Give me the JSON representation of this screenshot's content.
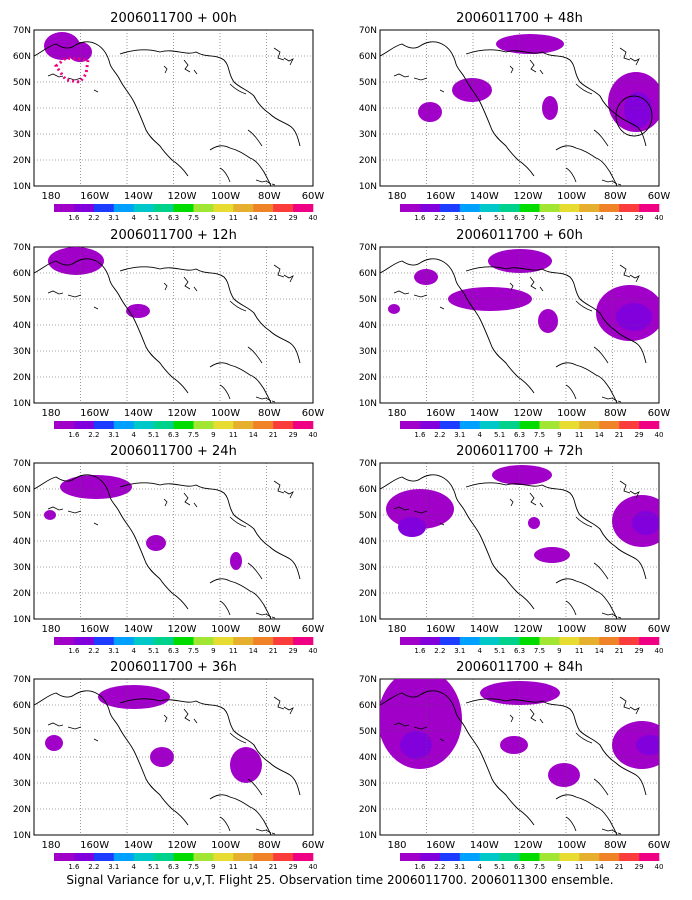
{
  "panels": [
    {
      "title": "2006011700 + 00h"
    },
    {
      "title": "2006011700 + 48h"
    },
    {
      "title": "2006011700 + 12h"
    },
    {
      "title": "2006011700 + 60h"
    },
    {
      "title": "2006011700 + 24h"
    },
    {
      "title": "2006011700 + 72h"
    },
    {
      "title": "2006011700 + 36h"
    },
    {
      "title": "2006011700 + 84h"
    }
  ],
  "lat_labels": [
    "70N",
    "60N",
    "50N",
    "40N",
    "30N",
    "20N",
    "10N"
  ],
  "lon_labels": [
    "180",
    "160W",
    "140W",
    "120W",
    "100W",
    "80W",
    "60W"
  ],
  "colorbar": {
    "labels": [
      "1.6",
      "2.2",
      "3.1",
      "4",
      "5.1",
      "6.3",
      "7.5",
      "9",
      "11",
      "14",
      "21",
      "29",
      "40"
    ],
    "colors": [
      "#a000c8",
      "#8200dc",
      "#1e3cff",
      "#00a0ff",
      "#00c8c8",
      "#00d28c",
      "#00dc00",
      "#a0e632",
      "#e6dc32",
      "#e6af2d",
      "#f08228",
      "#fa3c3c",
      "#f00082"
    ]
  },
  "caption": "Signal Variance for u,v,T. Flight 25. Observation time 2006011700. 2006011300 ensemble."
}
